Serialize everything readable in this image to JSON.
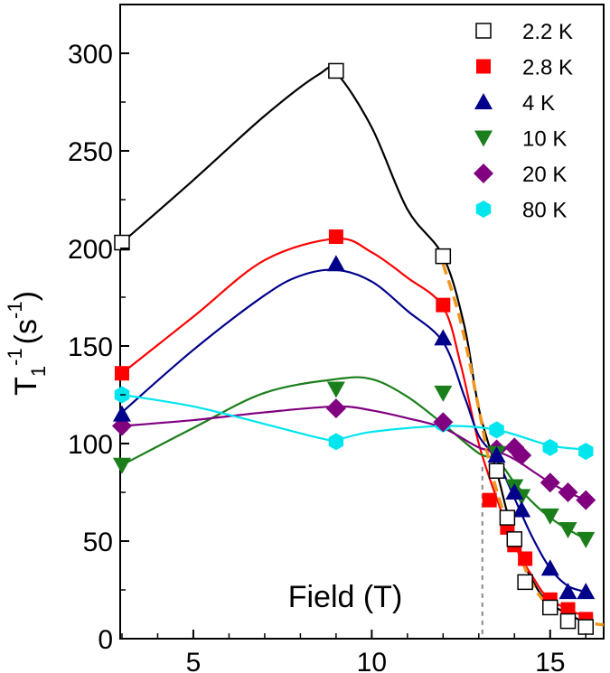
{
  "chart_data": {
    "type": "scatter",
    "title": "",
    "xlabel": "Field (T)",
    "ylabel_parts": {
      "T": "T",
      "sub": "1",
      "sup1": "-1",
      "open": "(s",
      "sup2": "-1",
      "close": ")"
    },
    "xlim": [
      2.95,
      16.5
    ],
    "ylim": [
      0,
      325
    ],
    "xticks": [
      5,
      10,
      15
    ],
    "yticks": [
      0,
      50,
      100,
      150,
      200,
      250,
      300
    ],
    "grid": false,
    "legend_position": "top-right",
    "vline": {
      "x": 13.1,
      "color": "#888888",
      "style": "dashed"
    },
    "series": [
      {
        "name": "2.2 K",
        "marker": "square-open",
        "color": "#000000",
        "x": [
          3,
          9,
          12,
          13.5,
          13.8,
          14,
          14.3,
          15,
          15.5,
          16
        ],
        "y": [
          203,
          291,
          196,
          86,
          62,
          51,
          29,
          16,
          9,
          6
        ],
        "fit": [
          [
            3,
            203
          ],
          [
            5,
            235
          ],
          [
            7,
            268
          ],
          [
            8.5,
            289
          ],
          [
            9,
            290
          ],
          [
            10,
            262
          ],
          [
            11,
            220
          ],
          [
            12,
            196
          ],
          [
            12.6,
            160
          ],
          [
            13,
            118
          ],
          [
            13.5,
            86
          ],
          [
            14,
            51
          ],
          [
            14.5,
            30
          ],
          [
            15,
            18
          ],
          [
            16,
            8
          ]
        ]
      },
      {
        "name": "2.8 K",
        "marker": "square",
        "color": "#ff0000",
        "x": [
          3,
          9,
          12,
          13.3,
          13.8,
          14,
          14.3,
          15,
          15.5,
          16
        ],
        "y": [
          136,
          206,
          171,
          71,
          57,
          48,
          41,
          20,
          15,
          10
        ],
        "fit": [
          [
            3,
            136
          ],
          [
            5,
            165
          ],
          [
            7,
            194
          ],
          [
            9,
            205
          ],
          [
            10,
            198
          ],
          [
            11,
            185
          ],
          [
            12,
            170
          ],
          [
            12.5,
            140
          ],
          [
            13,
            100
          ],
          [
            13.5,
            72
          ],
          [
            14,
            48
          ],
          [
            14.5,
            32
          ],
          [
            15,
            20
          ],
          [
            16,
            11
          ]
        ]
      },
      {
        "name": "4 K",
        "marker": "triangle-up",
        "color": "#00008b",
        "x": [
          3,
          9,
          12,
          13.5,
          14,
          14.2,
          15,
          15.5,
          16
        ],
        "y": [
          115,
          192,
          154,
          94,
          75,
          66,
          36,
          24,
          24
        ],
        "fit": [
          [
            3,
            116
          ],
          [
            5,
            148
          ],
          [
            7,
            176
          ],
          [
            8,
            186
          ],
          [
            9,
            189
          ],
          [
            10,
            183
          ],
          [
            11,
            168
          ],
          [
            12,
            152
          ],
          [
            12.6,
            124
          ],
          [
            13,
            104
          ],
          [
            13.5,
            92
          ],
          [
            14,
            72
          ],
          [
            14.5,
            52
          ],
          [
            15,
            36
          ],
          [
            15.5,
            27
          ],
          [
            16,
            24
          ]
        ]
      },
      {
        "name": "10 K",
        "marker": "triangle-down",
        "color": "#1a7f1a",
        "x": [
          3,
          9,
          12,
          13.5,
          14,
          14.2,
          15,
          15.5,
          16
        ],
        "y": [
          89,
          128,
          126,
          95,
          78,
          73,
          63,
          56,
          51
        ],
        "fit": [
          [
            3,
            89
          ],
          [
            5,
            108
          ],
          [
            7,
            126
          ],
          [
            9,
            133
          ],
          [
            10,
            133
          ],
          [
            11,
            124
          ],
          [
            12,
            110
          ],
          [
            13,
            95
          ],
          [
            13.5,
            92
          ],
          [
            14,
            80
          ],
          [
            14.5,
            70
          ],
          [
            15,
            62
          ],
          [
            15.5,
            56
          ],
          [
            16,
            51
          ]
        ]
      },
      {
        "name": "20 K",
        "marker": "diamond",
        "color": "#800080",
        "x": [
          3,
          9,
          12,
          13.5,
          14,
          14.2,
          15,
          15.5,
          16
        ],
        "y": [
          109,
          118,
          111,
          97,
          98,
          94,
          80,
          75,
          71
        ],
        "fit": [
          [
            3,
            109
          ],
          [
            5,
            112
          ],
          [
            7,
            116
          ],
          [
            9,
            119
          ],
          [
            10,
            117
          ],
          [
            11,
            113
          ],
          [
            12,
            108
          ],
          [
            13,
            98
          ],
          [
            13.5,
            96
          ],
          [
            14,
            92
          ],
          [
            14.5,
            86
          ],
          [
            15,
            80
          ],
          [
            15.5,
            75
          ],
          [
            16,
            71
          ]
        ]
      },
      {
        "name": "80 K",
        "marker": "hexagon",
        "color": "#00e5ee",
        "x": [
          3,
          9,
          12,
          13.5,
          15,
          16
        ],
        "y": [
          125,
          101,
          110,
          107,
          98,
          96
        ],
        "fit": [
          [
            3,
            125
          ],
          [
            5,
            119
          ],
          [
            7,
            110
          ],
          [
            8.5,
            103
          ],
          [
            9,
            102
          ],
          [
            10,
            106
          ],
          [
            12,
            109
          ],
          [
            13.5,
            107
          ],
          [
            15,
            99
          ],
          [
            16,
            97
          ]
        ]
      }
    ],
    "dashed_fit": {
      "color": "#f0961e",
      "points": [
        [
          12,
          192
        ],
        [
          12.5,
          162
        ],
        [
          13,
          118
        ],
        [
          13.3,
          90
        ],
        [
          13.6,
          70
        ],
        [
          14,
          50
        ],
        [
          14.5,
          28
        ],
        [
          15,
          16
        ],
        [
          15.5,
          10
        ],
        [
          16.5,
          7
        ]
      ]
    }
  }
}
